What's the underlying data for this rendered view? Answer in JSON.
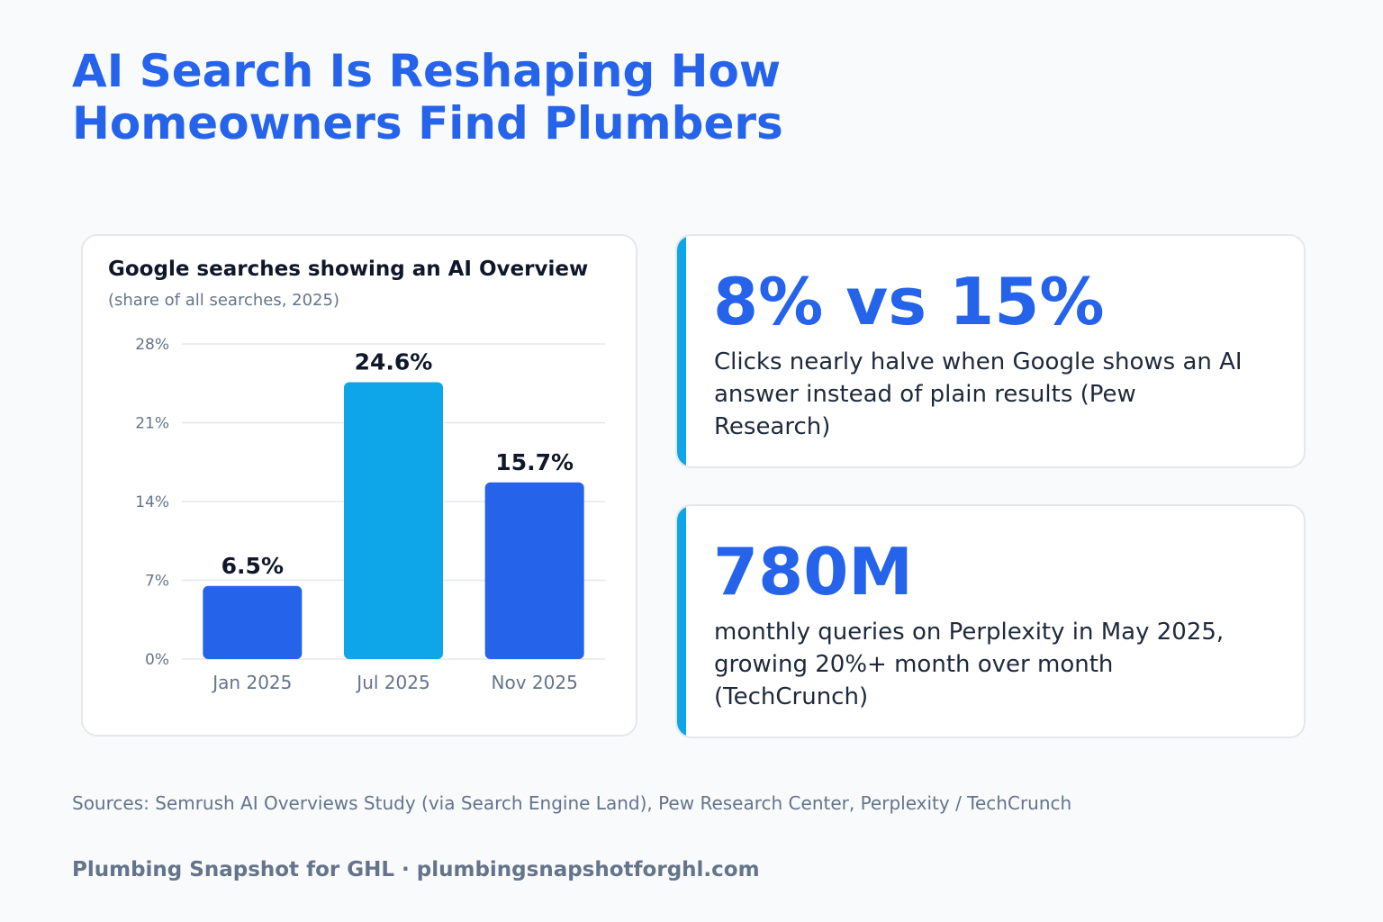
{
  "title_lines": [
    "AI Search Is Reshaping How",
    "Homeowners Find Plumbers"
  ],
  "colors": {
    "title": "#2563eb",
    "bar_primary": "#2563eb",
    "bar_highlight": "#0ea5e9",
    "accent": "#0ea5e9"
  },
  "chart_data": {
    "type": "bar",
    "title": "Google searches showing an AI Overview",
    "subtitle": "(share of all searches, 2025)",
    "categories": [
      "Jan 2025",
      "Jul 2025",
      "Nov 2025"
    ],
    "values": [
      6.5,
      24.6,
      15.7
    ],
    "data_labels": [
      "6.5%",
      "24.6%",
      "15.7%"
    ],
    "ylim": [
      0,
      28
    ],
    "yticks": [
      0,
      7,
      14,
      21,
      28
    ],
    "ytick_labels": [
      "0%",
      "7%",
      "14%",
      "21%",
      "28%"
    ],
    "xlabel": "",
    "ylabel": "",
    "grid": true,
    "bar_colors": [
      "#2563eb",
      "#0ea5e9",
      "#2563eb"
    ]
  },
  "stats": [
    {
      "value": "8% vs 15%",
      "description": "Clicks nearly halve when Google shows an AI answer instead of plain results (Pew Research)"
    },
    {
      "value": "780M",
      "description": "monthly queries on Perplexity in May 2025, growing 20%+ month over month (TechCrunch)"
    }
  ],
  "sources": "Sources: Semrush AI Overviews Study (via Search Engine Land), Pew Research Center, Perplexity / TechCrunch",
  "footer": "Plumbing Snapshot for GHL · plumbingsnapshotforghl.com"
}
